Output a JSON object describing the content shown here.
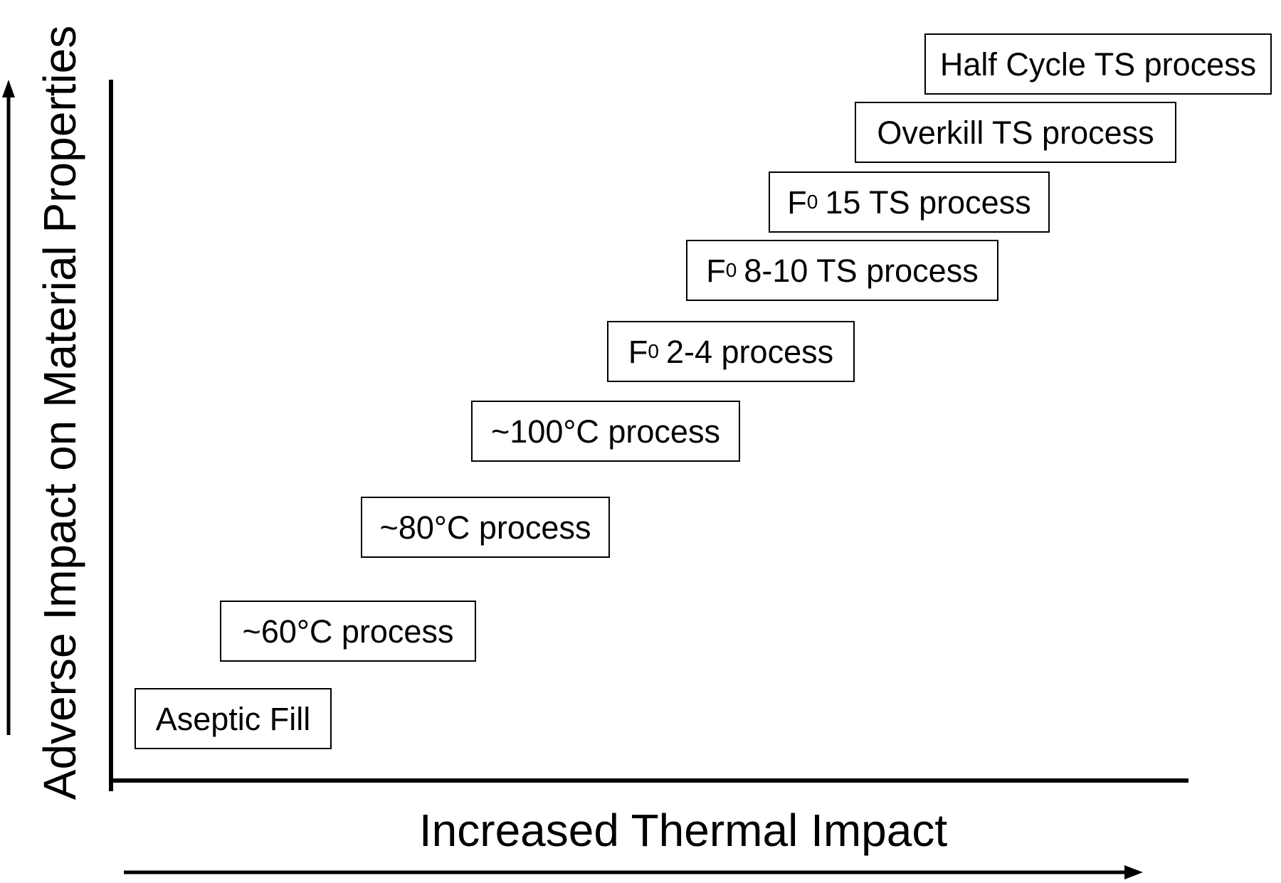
{
  "axes": {
    "x_label": "Increased Thermal Impact",
    "y_label": "Adverse Impact on Material Properties"
  },
  "processes": [
    {
      "prefix": "",
      "sub": "",
      "text": "Aseptic Fill"
    },
    {
      "prefix": "",
      "sub": "",
      "text": "~60°C process"
    },
    {
      "prefix": "",
      "sub": "",
      "text": "~80°C process"
    },
    {
      "prefix": "",
      "sub": "",
      "text": "~100°C process"
    },
    {
      "prefix": "F",
      "sub": "0",
      "text": "2-4 process"
    },
    {
      "prefix": "F",
      "sub": "0",
      "text": "8-10 TS process"
    },
    {
      "prefix": "F",
      "sub": "0",
      "text": "15 TS process"
    },
    {
      "prefix": "",
      "sub": "",
      "text": "Overkill TS process"
    },
    {
      "prefix": "",
      "sub": "",
      "text": "Half Cycle TS process"
    }
  ]
}
